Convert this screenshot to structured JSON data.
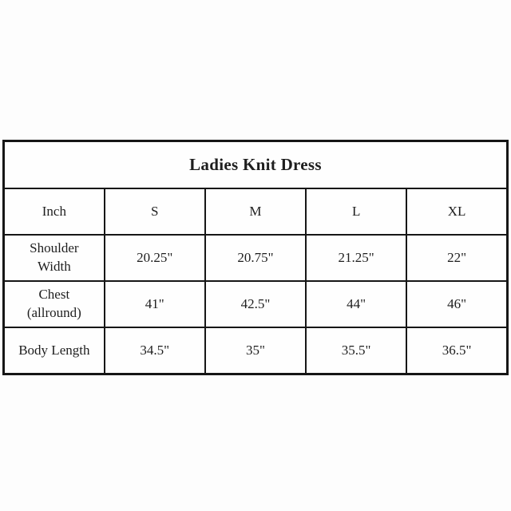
{
  "page": {
    "background_color": "#fdfdfd",
    "border_color": "#161616",
    "text_color": "#1e1e1e"
  },
  "chart_data": {
    "type": "table",
    "title": "Ladies Knit Dress",
    "unit_header": "Inch",
    "size_columns": [
      "S",
      "M",
      "L",
      "XL"
    ],
    "rows": [
      {
        "label": "Shoulder Width",
        "label_lines": [
          "Shoulder",
          "Width"
        ],
        "values": [
          "20.25\"",
          "20.75\"",
          "21.25\"",
          "22\""
        ]
      },
      {
        "label": "Chest (allround)",
        "label_lines": [
          "Chest",
          "(allround)"
        ],
        "values": [
          "41\"",
          "42.5\"",
          "44\"",
          "46\""
        ]
      },
      {
        "label": "Body Length",
        "label_lines": [
          "Body Length"
        ],
        "values": [
          "34.5\"",
          "35\"",
          "35.5\"",
          "36.5\""
        ]
      }
    ]
  }
}
